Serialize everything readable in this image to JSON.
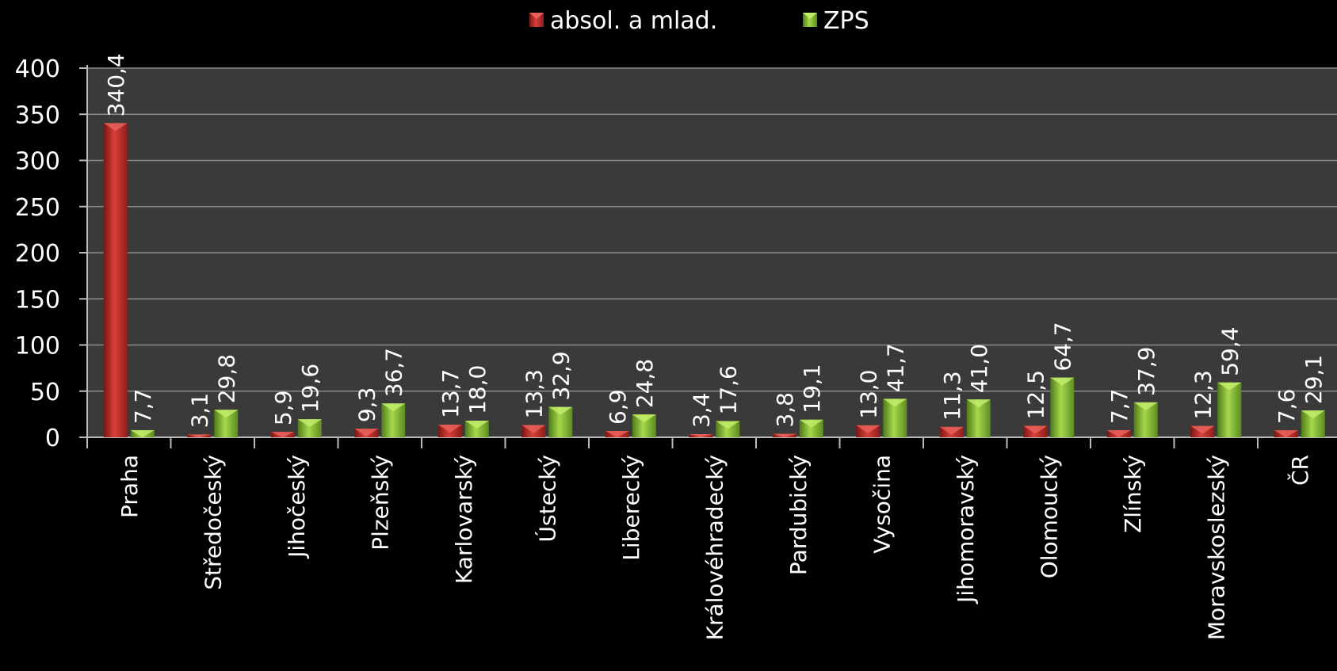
{
  "chart_data": {
    "type": "bar",
    "categories": [
      "Praha",
      "Středočeský",
      "Jihočeský",
      "Plzeňský",
      "Karlovarský",
      "Ústecký",
      "Liberecký",
      "Královéhradecký",
      "Pardubický",
      "Vysočina",
      "Jihomoravský",
      "Olomoucký",
      "Zlínský",
      "Moravskoslezský",
      "ČR"
    ],
    "series": [
      {
        "name": "absol. a mlad.",
        "color": "#c0302c",
        "values": [
          340.4,
          3.1,
          5.9,
          9.3,
          13.7,
          13.3,
          6.9,
          3.4,
          3.8,
          13.0,
          11.3,
          12.5,
          7.7,
          12.3,
          7.6
        ],
        "labels": [
          "340,4",
          "3,1",
          "5,9",
          "9,3",
          "13,7",
          "13,3",
          "6,9",
          "3,4",
          "3,8",
          "13,0",
          "11,3",
          "12,5",
          "7,7",
          "12,3",
          "7,6"
        ]
      },
      {
        "name": "ZPS",
        "color": "#8bc23c",
        "values": [
          7.7,
          29.8,
          19.6,
          36.7,
          18.0,
          32.9,
          24.8,
          17.6,
          19.1,
          41.7,
          41.0,
          64.7,
          37.9,
          59.4,
          29.1
        ],
        "labels": [
          "7,7",
          "29,8",
          "19,6",
          "36,7",
          "18,0",
          "32,9",
          "24,8",
          "17,6",
          "19,1",
          "41,7",
          "41,0",
          "64,7",
          "37,9",
          "59,4",
          "29,1"
        ]
      }
    ],
    "yticks": [
      "0",
      "50",
      "100",
      "150",
      "200",
      "250",
      "300",
      "350",
      "400"
    ],
    "ylim": [
      0,
      400
    ],
    "grid": true,
    "legend_position": "top-center",
    "plot_background": "#3a3a3a",
    "page_background": "#000000"
  }
}
